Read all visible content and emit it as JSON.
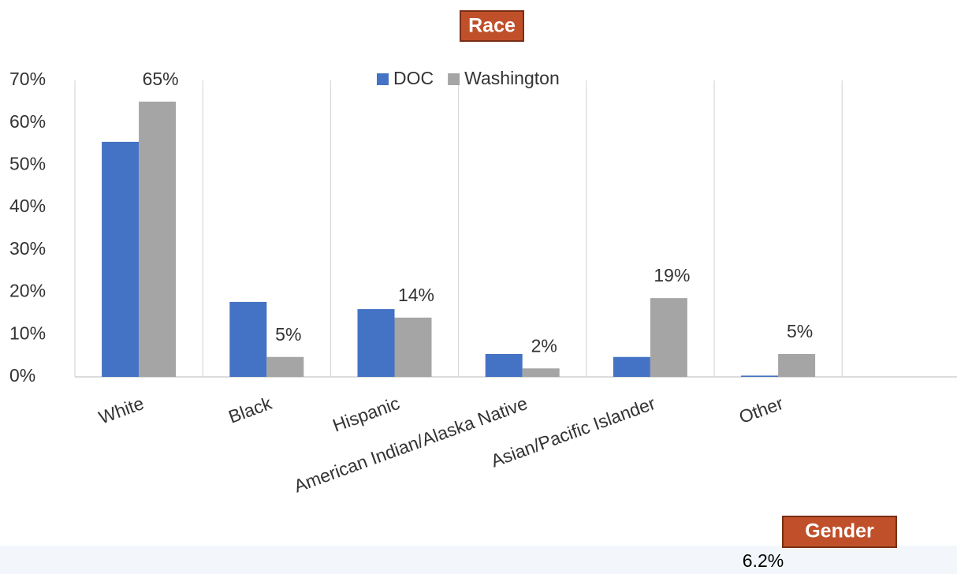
{
  "chart_data": {
    "type": "bar",
    "title": "Race",
    "categories": [
      "White",
      "Black",
      "Hispanic",
      "American Indian/Alaska Native",
      "Asian/Pacific Islander",
      "Other",
      null
    ],
    "series": [
      {
        "name": "DOC",
        "color": "#4472c4",
        "values": [
          55.5,
          17.7,
          16,
          5.4,
          4.7,
          0.3,
          null
        ]
      },
      {
        "name": "Washington",
        "color": "#a5a5a5",
        "values": [
          65,
          4.7,
          14,
          2,
          18.6,
          5.4,
          null
        ],
        "value_labels": [
          "65%",
          "5%",
          "14%",
          "2%",
          "19%",
          "5%",
          null
        ]
      }
    ],
    "ylim": [
      0,
      70
    ],
    "yticks": [
      {
        "value": 0,
        "label": "0%"
      },
      {
        "value": 10,
        "label": "10%"
      },
      {
        "value": 20,
        "label": "20%"
      },
      {
        "value": 30,
        "label": "30%"
      },
      {
        "value": 40,
        "label": "40%"
      },
      {
        "value": 50,
        "label": "50%"
      },
      {
        "value": 60,
        "label": "60%"
      },
      {
        "value": 70,
        "label": "70%"
      }
    ],
    "grid": true,
    "legend": "top",
    "annotations": [
      "Gender",
      "6.2%"
    ]
  }
}
